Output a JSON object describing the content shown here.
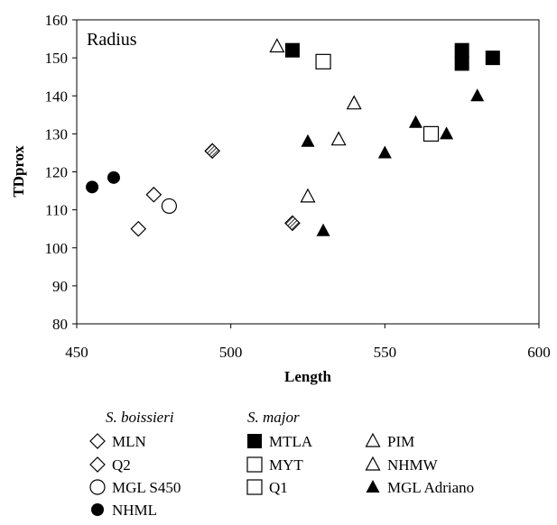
{
  "chart_data": {
    "type": "scatter",
    "panel_label": "Radius",
    "xlabel": "Length",
    "ylabel": "TDprox",
    "xlim": [
      450,
      600
    ],
    "ylim": [
      80,
      160
    ],
    "x_ticks": [
      "450",
      "500",
      "550",
      "600"
    ],
    "y_ticks": [
      "80",
      "90",
      "100",
      "110",
      "120",
      "130",
      "140",
      "150",
      "160"
    ],
    "legend_groups": [
      {
        "heading": "S. boissieri",
        "entries": [
          "MLN",
          "Q2",
          "MGL S450",
          "NHML"
        ]
      },
      {
        "heading": "S. major",
        "entries": [
          "MTLA",
          "MYT",
          "Q1",
          "PIM",
          "NHMW",
          "MGL Adriano"
        ]
      }
    ],
    "series": [
      {
        "name": "MLN",
        "marker": "diamond-open",
        "points": [
          [
            470,
            105
          ],
          [
            475,
            114
          ]
        ]
      },
      {
        "name": "Q2",
        "marker": "diamond-hatched",
        "points": [
          [
            494,
            125.5
          ],
          [
            520,
            106.5
          ]
        ]
      },
      {
        "name": "MGL S450",
        "marker": "circle-open",
        "points": [
          [
            480,
            111
          ]
        ]
      },
      {
        "name": "NHML",
        "marker": "circle-filled",
        "points": [
          [
            455,
            116
          ],
          [
            462,
            118.5
          ]
        ]
      },
      {
        "name": "MTLA",
        "marker": "square-filled",
        "points": [
          [
            520,
            152
          ],
          [
            575,
            152
          ],
          [
            575,
            148.5
          ],
          [
            585,
            150
          ]
        ]
      },
      {
        "name": "MYT",
        "marker": "square-open",
        "points": [
          [
            530,
            149
          ],
          [
            565,
            130
          ]
        ]
      },
      {
        "name": "Q1",
        "marker": "square-open",
        "points": []
      },
      {
        "name": "PIM",
        "marker": "triangle-open",
        "points": [
          [
            515,
            153
          ],
          [
            540,
            138
          ],
          [
            525,
            113.5
          ],
          [
            535,
            128.5
          ]
        ]
      },
      {
        "name": "NHMW",
        "marker": "triangle-open",
        "points": []
      },
      {
        "name": "MGL Adriano",
        "marker": "triangle-filled",
        "points": [
          [
            525,
            128
          ],
          [
            530,
            104.5
          ],
          [
            550,
            125
          ],
          [
            560,
            133
          ],
          [
            570,
            130
          ],
          [
            580,
            140
          ]
        ]
      }
    ]
  }
}
